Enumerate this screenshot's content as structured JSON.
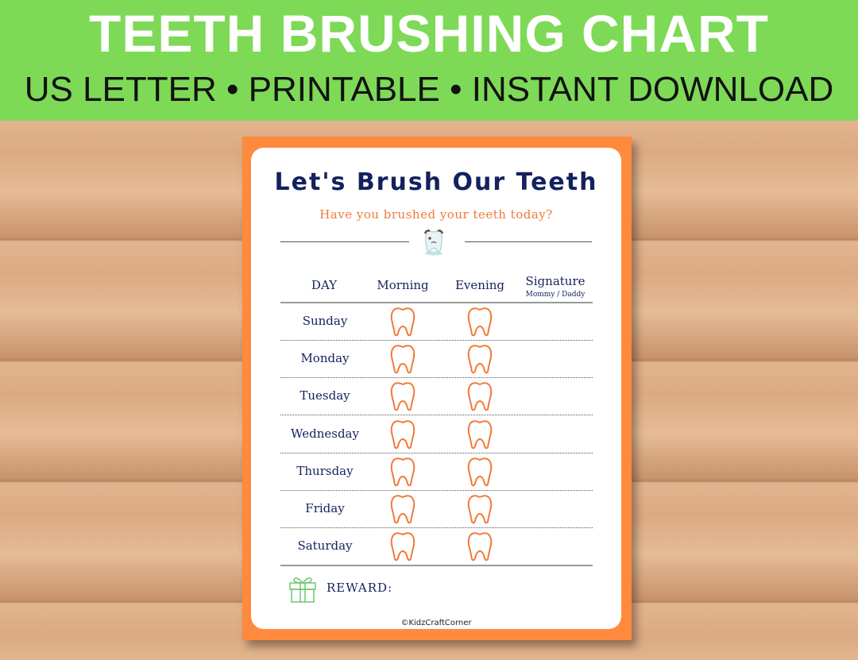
{
  "banner": {
    "title": "TEETH BRUSHING CHART",
    "subtitle": "US LETTER • PRINTABLE • INSTANT DOWNLOAD"
  },
  "chart": {
    "title": "Let's Brush Our Teeth",
    "subtitle": "Have you brushed your teeth today?",
    "headers": {
      "day": "DAY",
      "morning": "Morning",
      "evening": "Evening",
      "signature": "Signature",
      "signature_sub": "Mommy / Daddy"
    },
    "days": [
      "Sunday",
      "Monday",
      "Tuesday",
      "Wednesday",
      "Thursday",
      "Friday",
      "Saturday"
    ],
    "reward_label": "REWARD:",
    "copyright": "©KidzCraftCorner"
  },
  "colors": {
    "banner": "#7ed957",
    "frame": "#ff8a3d",
    "navy": "#14215e",
    "tooth_outline": "#f07a3a",
    "gift": "#6cc870"
  }
}
